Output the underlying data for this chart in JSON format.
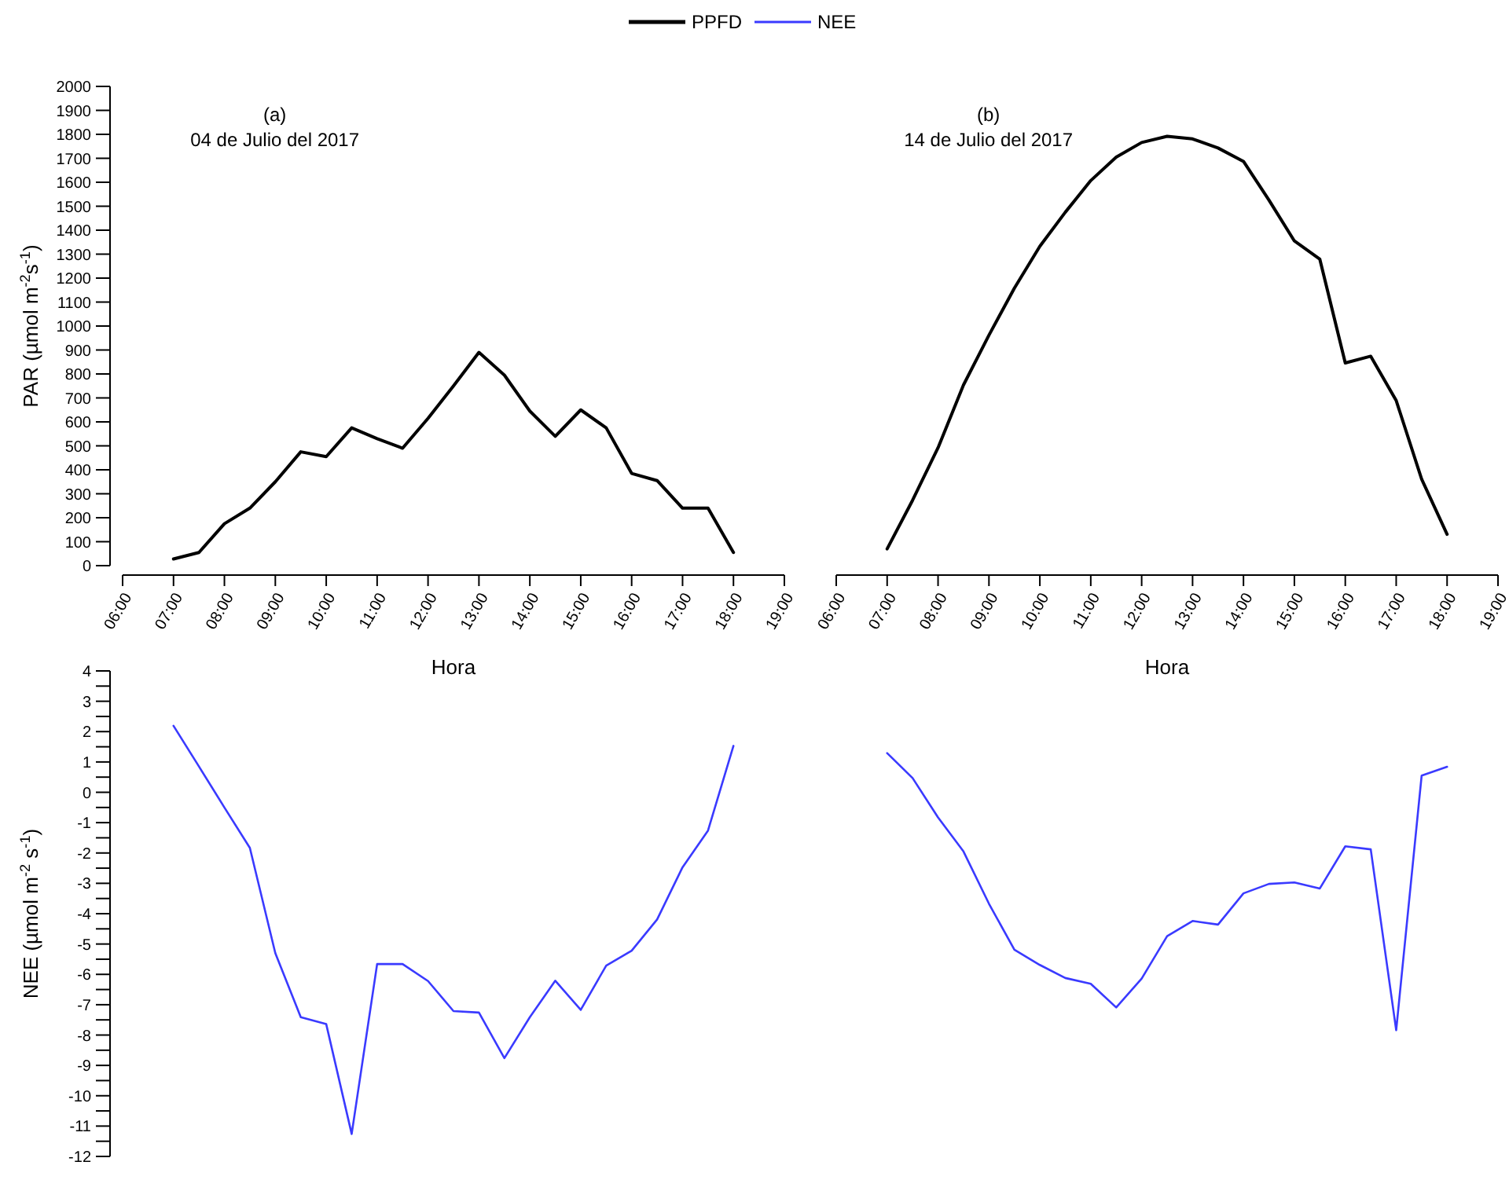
{
  "chart_data": [
    {
      "type": "line",
      "ylabel": "PAR (µmol m$^{-2}$s$^{-1}$)",
      "xlabel": "Hora",
      "annotations": [
        "(a)",
        "04 de Julio del 2017"
      ],
      "legend": "top",
      "x": [
        7,
        7.5,
        8,
        8.5,
        9,
        9.5,
        10,
        10.5,
        11,
        11.5,
        12,
        12.5,
        13,
        13.5,
        14,
        14.5,
        15,
        15.5,
        16,
        16.5,
        17,
        17.5,
        18
      ],
      "series": [
        {
          "name": "PPFD",
          "color": "#000000",
          "values": [
            28,
            55,
            175,
            240,
            350,
            475,
            455,
            575,
            530,
            490,
            615,
            750,
            890,
            795,
            645,
            540,
            650,
            575,
            385,
            355,
            240,
            240,
            55
          ]
        }
      ],
      "xlim": [
        6,
        19
      ],
      "xticks": [
        {
          "value": 6,
          "label": "06:00"
        },
        {
          "value": 7,
          "label": "07:00"
        },
        {
          "value": 8,
          "label": "08:00"
        },
        {
          "value": 9,
          "label": "09:00"
        },
        {
          "value": 10,
          "label": "10:00"
        },
        {
          "value": 11,
          "label": "11:00"
        },
        {
          "value": 12,
          "label": "12:00"
        },
        {
          "value": 13,
          "label": "13:00"
        },
        {
          "value": 14,
          "label": "14:00"
        },
        {
          "value": 15,
          "label": "15:00"
        },
        {
          "value": 16,
          "label": "16:00"
        },
        {
          "value": 17,
          "label": "17:00"
        },
        {
          "value": 18,
          "label": "18:00"
        },
        {
          "value": 19,
          "label": "19:00"
        }
      ],
      "ylim": [
        0,
        2000
      ],
      "yticks": [
        0,
        100,
        200,
        300,
        400,
        500,
        600,
        700,
        800,
        900,
        1000,
        1100,
        1200,
        1300,
        1400,
        1500,
        1600,
        1700,
        1800,
        1900,
        2000
      ]
    },
    {
      "type": "line",
      "xlabel": "Hora",
      "annotations": [
        "(b)",
        "14 de Julio del 2017"
      ],
      "tick_labels": "x",
      "x": [
        7,
        7.5,
        8,
        8.5,
        9,
        9.5,
        10,
        10.5,
        11,
        11.5,
        12,
        12.5,
        13,
        13.5,
        14,
        14.5,
        15,
        15.5,
        16,
        16.5,
        17,
        17.5,
        18
      ],
      "series": [
        {
          "name": "PPFD",
          "color": "#000000",
          "values": [
            70,
            273,
            492,
            754,
            962,
            1158,
            1333,
            1475,
            1607,
            1705,
            1766,
            1792,
            1781,
            1743,
            1687,
            1526,
            1355,
            1279,
            846,
            874,
            689,
            361,
            131
          ]
        }
      ],
      "xlim": [
        6,
        19
      ],
      "xticks": [
        {
          "value": 6,
          "label": "06:00"
        },
        {
          "value": 7,
          "label": "07:00"
        },
        {
          "value": 8,
          "label": "08:00"
        },
        {
          "value": 9,
          "label": "09:00"
        },
        {
          "value": 10,
          "label": "10:00"
        },
        {
          "value": 11,
          "label": "11:00"
        },
        {
          "value": 12,
          "label": "12:00"
        },
        {
          "value": 13,
          "label": "13:00"
        },
        {
          "value": 14,
          "label": "14:00"
        },
        {
          "value": 15,
          "label": "15:00"
        },
        {
          "value": 16,
          "label": "16:00"
        },
        {
          "value": 17,
          "label": "17:00"
        },
        {
          "value": 18,
          "label": "18:00"
        },
        {
          "value": 19,
          "label": "19:00"
        }
      ],
      "ylim": [
        0,
        2000
      ]
    },
    {
      "type": "line",
      "ylabel": "NEE (µmol m$^{-2}$ s$^{-1}$)",
      "tick_labels": "y",
      "x": [
        7,
        7.5,
        8,
        8.5,
        9,
        9.5,
        10,
        10.5,
        11,
        11.5,
        12,
        12.5,
        13,
        13.5,
        14,
        14.5,
        15,
        15.5,
        16,
        16.5,
        17,
        17.5,
        18
      ],
      "series": [
        {
          "name": "NEE",
          "color": "#3a3aff",
          "values": [
            2.19,
            0.85,
            -0.5,
            -1.83,
            -5.3,
            -7.41,
            -7.64,
            -11.26,
            -5.66,
            -5.66,
            -6.22,
            -7.21,
            -7.26,
            -8.76,
            -7.41,
            -6.21,
            -7.17,
            -5.71,
            -5.22,
            -4.19,
            -2.47,
            -1.26,
            1.53
          ]
        }
      ],
      "xlim": [
        6,
        19
      ],
      "ylim": [
        -12,
        4
      ],
      "yticks": [
        -12,
        {
          "value": -11.5,
          "label": null
        },
        -11,
        {
          "value": -10.5,
          "label": null
        },
        -10,
        {
          "value": -9.5,
          "label": null
        },
        -9,
        {
          "value": -8.5,
          "label": null
        },
        -8,
        {
          "value": -7.5,
          "label": null
        },
        -7,
        {
          "value": -6.5,
          "label": null
        },
        -6,
        {
          "value": -5.5,
          "label": null
        },
        -5,
        {
          "value": -4.5,
          "label": null
        },
        -4,
        {
          "value": -3.5,
          "label": null
        },
        -3,
        {
          "value": -2.5,
          "label": null
        },
        -2,
        {
          "value": -1.5,
          "label": null
        },
        -1,
        {
          "value": -0.5,
          "label": null
        },
        0,
        {
          "value": 0.5,
          "label": null
        },
        1,
        {
          "value": 1.5,
          "label": null
        },
        2,
        {
          "value": 2.5,
          "label": null
        },
        3,
        {
          "value": 3.5,
          "label": null
        },
        4
      ]
    },
    {
      "type": "line",
      "tick_labels": false,
      "x": [
        7,
        7.5,
        8,
        8.5,
        9,
        9.5,
        10,
        10.5,
        11,
        11.5,
        12,
        12.5,
        13,
        13.5,
        14,
        14.5,
        15,
        15.5,
        16,
        16.5,
        17,
        17.5,
        18
      ],
      "series": [
        {
          "name": "NEE",
          "color": "#3a3aff",
          "values": [
            1.29,
            0.47,
            -0.83,
            -1.95,
            -3.67,
            -5.19,
            -5.69,
            -6.12,
            -6.31,
            -7.09,
            -6.14,
            -4.74,
            -4.24,
            -4.36,
            -3.33,
            -3.02,
            -2.97,
            -3.17,
            -1.78,
            -1.88,
            -7.84,
            0.55,
            0.84
          ]
        }
      ],
      "xlim": [
        6,
        19
      ],
      "ylim": [
        -12,
        4
      ]
    }
  ]
}
